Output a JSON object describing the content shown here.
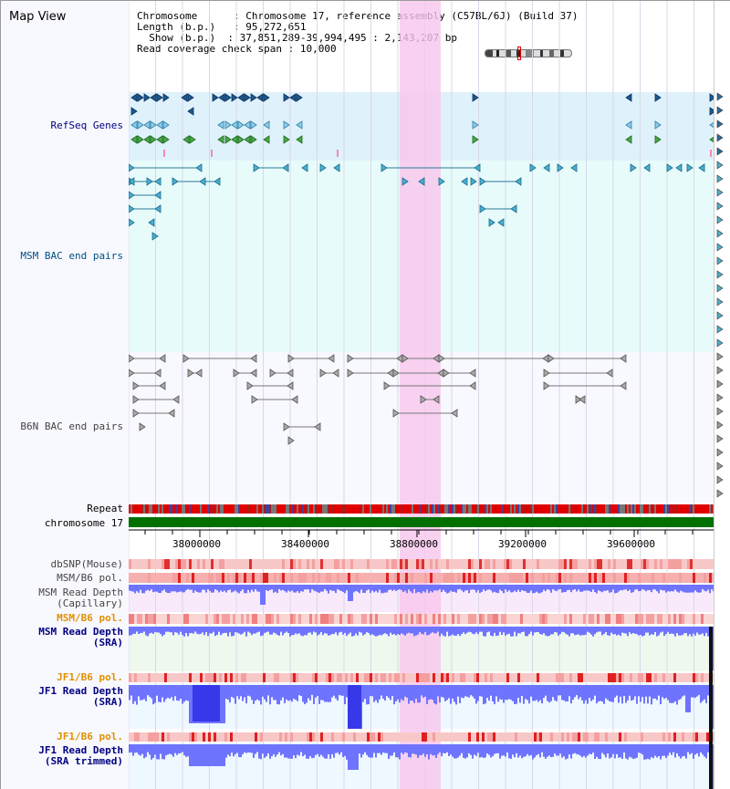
{
  "window": {
    "title": "Map View"
  },
  "info": {
    "chromosome_label": "Chromosome",
    "chromosome_value": "Chromosome 17, reference assembly (C57BL/6J) (Build 37)",
    "length_label": "Length (b.p.)",
    "length_value": "95,272,651",
    "show_label": "Show (b.p.)",
    "show_value": "37,851,289-39,994,495 : 2,143,207 bp",
    "span_label": "Read coverage check span",
    "span_value": "10,000"
  },
  "tracks": {
    "refseq": "RefSeq Genes",
    "msm_bac": "MSM BAC end pairs",
    "b6n_bac": "B6N BAC end pairs",
    "repeat": "Repeat",
    "chromosome": "chromosome 17",
    "dbsnp": "dbSNP(Mouse)",
    "msm_b6_pol": "MSM/B6 pol.",
    "msm_depth_cap_1": "MSM Read Depth",
    "msm_depth_cap_2": "(Capillary)",
    "msm_b6_pol_sra": "MSM/B6 pol.",
    "msm_depth_sra_1": "MSM Read Depth",
    "msm_depth_sra_2": "(SRA)",
    "jf1_b6_pol": "JF1/B6 pol.",
    "jf1_depth_sra_1": "JF1 Read Depth",
    "jf1_depth_sra_2": "(SRA)",
    "jf1_b6_pol_trim": "JF1/B6 pol.",
    "jf1_depth_trim_1": "JF1 Read Depth",
    "jf1_depth_trim_2": "(SRA trimmed)"
  },
  "axis": {
    "ticks": [
      "38000000",
      "38400000",
      "38800000",
      "39200000",
      "39600000"
    ]
  },
  "colors": {
    "refseq_bg": "#dff1fb",
    "bac_bg": "#e8fbfb",
    "b6n_bg": "#f8f8ff",
    "highlight": "#f7c6ec",
    "chromosome_bar": "#007000",
    "repeat": "#e00000",
    "depth_blue": "#6f74ff",
    "depth_dark": "#2020e0",
    "label_navy": "#000080",
    "label_orange": "#e09000"
  }
}
